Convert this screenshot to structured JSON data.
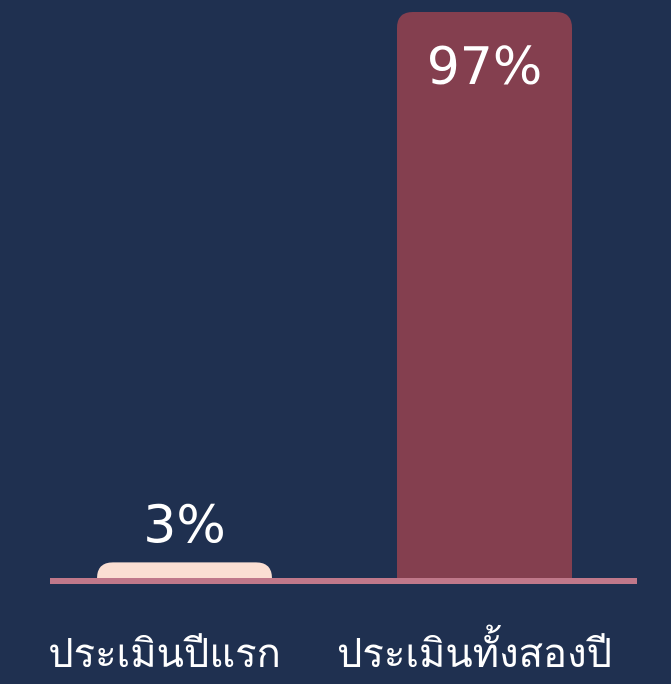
{
  "chart_data": {
    "type": "bar",
    "categories": [
      "ประเมินปีแรก",
      "ประเมินทั้งสองปี"
    ],
    "values": [
      3,
      97
    ],
    "value_labels": [
      "3%",
      "97%"
    ],
    "colors": [
      "#fbdfd3",
      "#843f4f"
    ],
    "label_colors": [
      "#000000",
      "#ffffff"
    ]
  }
}
